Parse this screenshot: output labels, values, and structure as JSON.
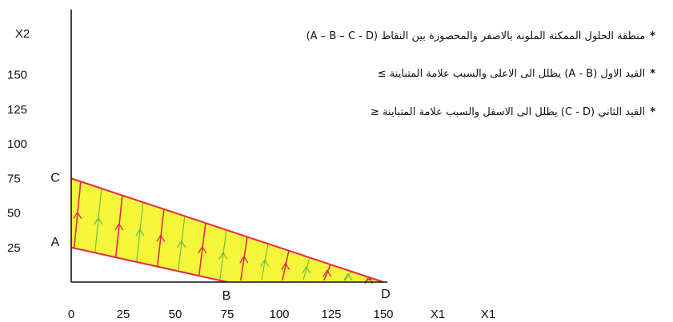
{
  "chart_data": {
    "type": "diagram",
    "title": "",
    "xlabel": "X1",
    "xlabel_repeat": "X1",
    "ylabel": "X2",
    "x_ticks": [
      0,
      25,
      50,
      75,
      100,
      125,
      150
    ],
    "y_ticks": [
      25,
      50,
      75,
      100,
      125,
      150
    ],
    "xlim": [
      0,
      180
    ],
    "ylim": [
      0,
      195
    ],
    "points": [
      {
        "label": "A",
        "x": 0,
        "y": 25
      },
      {
        "label": "B",
        "x": 75,
        "y": 0
      },
      {
        "label": "C",
        "x": 0,
        "y": 75
      },
      {
        "label": "D",
        "x": 150,
        "y": 0
      }
    ],
    "constraints": [
      {
        "name": "A - B",
        "from": [
          0,
          25
        ],
        "to": [
          75,
          0
        ],
        "shade": "above"
      },
      {
        "name": "C - D",
        "from": [
          0,
          75
        ],
        "to": [
          150,
          0
        ],
        "shade": "below"
      }
    ],
    "feasible_region": [
      [
        0,
        25
      ],
      [
        0,
        75
      ],
      [
        150,
        0
      ],
      [
        75,
        0
      ]
    ],
    "colors": {
      "region": "#f5f53a",
      "constraint_line": "#e02a4a",
      "hatch_red": "#e02a4a",
      "hatch_green": "#6cc04a",
      "axis": "#111111"
    }
  },
  "notes": [
    {
      "mark": "*",
      "text": "منطقة الحلول الممكنة الملونه بالاصفر والمحصورة بين النقاط (A – B – C - D)"
    },
    {
      "mark": "*",
      "text": "القيد الاول (A - B) يظلل الى الاعلى والسبب علامة المتباينة ≥"
    },
    {
      "mark": "*",
      "text": "القيد الثاني (C - D) يظلل الى الاسفل والسبب علامة المتباينة ≤"
    }
  ]
}
